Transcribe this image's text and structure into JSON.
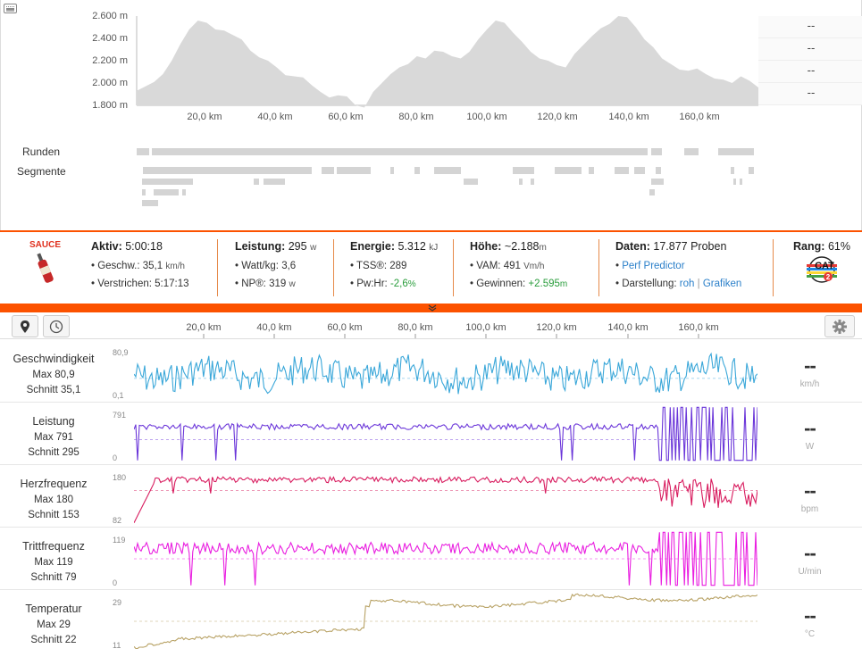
{
  "elevation": {
    "y_ticks": [
      "2.600 m",
      "2.400 m",
      "2.200 m",
      "2.000 m",
      "1.800 m"
    ],
    "x_ticks": [
      "20,0 km",
      "40,0 km",
      "60,0 km",
      "80,0 km",
      "100,0 km",
      "120,0 km",
      "140,0 km",
      "160,0 km"
    ],
    "fill_color": "#d9d9d9",
    "profile_m": [
      1930,
      1970,
      2010,
      2080,
      2200,
      2350,
      2480,
      2560,
      2540,
      2480,
      2470,
      2430,
      2390,
      2290,
      2230,
      2200,
      2140,
      2070,
      2060,
      2050,
      1980,
      1920,
      1870,
      1890,
      1880,
      1800,
      1780,
      1920,
      2000,
      2080,
      2140,
      2170,
      2240,
      2220,
      2290,
      2280,
      2240,
      2220,
      2280,
      2390,
      2480,
      2560,
      2540,
      2450,
      2370,
      2280,
      2220,
      2200,
      2160,
      2140,
      2260,
      2340,
      2420,
      2490,
      2530,
      2600,
      2590,
      2500,
      2390,
      2320,
      2220,
      2170,
      2120,
      2110,
      2130,
      2080,
      2040,
      2030,
      2000,
      2060,
      2020,
      1960
    ]
  },
  "readouts": [
    "--",
    "--",
    "--",
    "--"
  ],
  "laps": {
    "runden_label": "Runden",
    "segmente_label": "Segmente"
  },
  "stats": {
    "sauce_label": "SAUCE",
    "aktiv": {
      "label": "Aktiv:",
      "value": "5:00:18"
    },
    "geschw": {
      "label": "• Geschw.:",
      "value": "35,1",
      "unit": "km/h"
    },
    "verstrichen": {
      "label": "• Verstrichen:",
      "value": "5:17:13"
    },
    "leistung": {
      "label": "Leistung:",
      "value": "295",
      "unit": "w"
    },
    "wattkg": {
      "label": "• Watt/kg:",
      "value": "3,6"
    },
    "np": {
      "label": "• NP®:",
      "value": "319",
      "unit": "w"
    },
    "energie": {
      "label": "Energie:",
      "value": "5.312",
      "unit": "kJ"
    },
    "tss": {
      "label": "• TSS®:",
      "value": "289"
    },
    "pwhr": {
      "label": "• Pw:Hr:",
      "value": "-2,6",
      "unit": "%"
    },
    "hoehe": {
      "label": "Höhe:",
      "value": "~2.188",
      "unit": "m"
    },
    "vam": {
      "label": "• VAM:",
      "value": "491",
      "unit": "Vm/h"
    },
    "gewinnen": {
      "label": "• Gewinnen:",
      "value": "+2.595",
      "unit": "m"
    },
    "daten": {
      "label": "Daten:",
      "value": "17.877 Proben"
    },
    "perf": {
      "label": "Perf Predictor"
    },
    "darstellung": {
      "label": "• Darstellung:",
      "roh": "roh",
      "sep": "|",
      "grafiken": "Grafiken"
    },
    "rang": {
      "label": "Rang:",
      "value": "61%"
    },
    "cat_badge": {
      "text": "CAT",
      "num": "2"
    }
  },
  "streams": {
    "x_ticks": [
      "20,0 km",
      "40,0 km",
      "60,0 km",
      "80,0 km",
      "100,0 km",
      "120,0 km",
      "140,0 km",
      "160,0 km"
    ],
    "rows": [
      {
        "name": "Geschwindigkeit",
        "max": "Max 80,9",
        "avg": "Schnitt 35,1",
        "top": "80,9",
        "bottom": "0,1",
        "unit": "km/h",
        "value": "--",
        "color": "#3aa7d9"
      },
      {
        "name": "Leistung",
        "max": "Max 791",
        "avg": "Schnitt 295",
        "top": "791",
        "bottom": "0",
        "unit": "W",
        "value": "--",
        "color": "#6a35d9"
      },
      {
        "name": "Herzfrequenz",
        "max": "Max 180",
        "avg": "Schnitt 153",
        "top": "180",
        "bottom": "82",
        "unit": "bpm",
        "value": "--",
        "color": "#d81b5e"
      },
      {
        "name": "Trittfrequenz",
        "max": "Max 119",
        "avg": "Schnitt 79",
        "top": "119",
        "bottom": "0",
        "unit": "U/min",
        "value": "--",
        "color": "#e91ee0"
      },
      {
        "name": "Temperatur",
        "max": "Max 29",
        "avg": "Schnitt 22",
        "top": "29",
        "bottom": "11",
        "unit": "°C",
        "value": "--",
        "color": "#b8a265"
      }
    ]
  }
}
